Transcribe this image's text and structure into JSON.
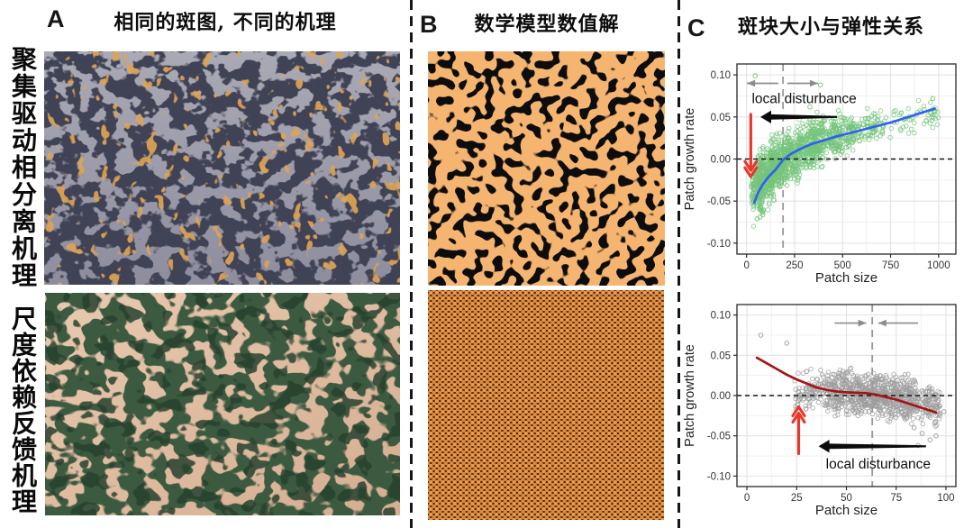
{
  "figure": {
    "side_labels": {
      "top": "聚集驱动相分离机理",
      "bottom": "尺度依赖反馈机理"
    },
    "panels": {
      "A": {
        "label": "A",
        "title": "相同的斑图, 不同的机理"
      },
      "B": {
        "label": "B",
        "title": "数学模型数值解"
      },
      "C": {
        "label": "C",
        "title": "斑块大小与弹性关系"
      }
    },
    "colors": {
      "mussel_mud": "#9b9aa8",
      "mussel_dark": "#3f4254",
      "mussel_gold": "#e0a452",
      "veg_soil": "#e2c0a4",
      "veg_green": "#3b5a41",
      "model_orange_bg": "#f5b470",
      "model_black_spot": "#0d0d0d",
      "model_dot_orange": "#f09a4a",
      "divider_black": "#161616"
    }
  },
  "chart_data": [
    {
      "type": "scatter",
      "position": "top",
      "xlabel": "Patch size",
      "ylabel": "Patch growth rate",
      "xlim": [
        -50,
        1090
      ],
      "ylim": [
        -0.113,
        0.113
      ],
      "xticks": [
        0,
        250,
        500,
        750,
        1000
      ],
      "xtick_labels": [
        "0",
        "250",
        "500",
        "750",
        "1000"
      ],
      "yticks": [
        -0.1,
        -0.05,
        0.0,
        0.05,
        0.1
      ],
      "ytick_labels": [
        "-0.10",
        "-0.05",
        "0.00",
        "0.05",
        "0.10"
      ],
      "grid": true,
      "zero_dashed_line_y": 0.0,
      "dashed_vline_x": 190,
      "point_color": "#74c47a",
      "trend_color": "#2e62f0",
      "trend": [
        [
          40,
          -0.052
        ],
        [
          60,
          -0.04
        ],
        [
          85,
          -0.03
        ],
        [
          115,
          -0.021
        ],
        [
          150,
          -0.013
        ],
        [
          190,
          -0.001
        ],
        [
          230,
          0.006
        ],
        [
          280,
          0.012
        ],
        [
          340,
          0.018
        ],
        [
          400,
          0.022
        ],
        [
          470,
          0.027
        ],
        [
          560,
          0.032
        ],
        [
          660,
          0.038
        ],
        [
          760,
          0.044
        ],
        [
          870,
          0.052
        ],
        [
          980,
          0.06
        ]
      ],
      "cloud": {
        "seed": 7,
        "n": 1400,
        "strata": [
          {
            "x": [
              25,
              90
            ],
            "center": [
              -0.04,
              -0.03
            ],
            "spread": 0.016,
            "w": 0.1
          },
          {
            "x": [
              60,
              150
            ],
            "center": [
              -0.03,
              -0.012
            ],
            "spread": 0.016,
            "w": 0.16
          },
          {
            "x": [
              120,
              250
            ],
            "center": [
              -0.012,
              0.008
            ],
            "spread": 0.015,
            "w": 0.26
          },
          {
            "x": [
              250,
              400
            ],
            "center": [
              0.008,
              0.024
            ],
            "spread": 0.014,
            "w": 0.24
          },
          {
            "x": [
              400,
              560
            ],
            "center": [
              0.024,
              0.034
            ],
            "spread": 0.011,
            "w": 0.14
          },
          {
            "x": [
              560,
              720
            ],
            "center": [
              0.034,
              0.04
            ],
            "spread": 0.009,
            "w": 0.06
          },
          {
            "x": [
              720,
              1000
            ],
            "center": [
              0.04,
              0.055
            ],
            "spread": 0.009,
            "w": 0.04
          }
        ]
      },
      "outliers": [
        [
          45,
          0.099
        ],
        [
          385,
          0.088
        ],
        [
          970,
          0.072
        ],
        [
          330,
          0.062
        ],
        [
          55,
          -0.071
        ],
        [
          70,
          -0.069
        ],
        [
          85,
          -0.066
        ],
        [
          620,
          0.048
        ],
        [
          680,
          0.041
        ]
      ],
      "annotations": {
        "text": {
          "label": "local disturbance",
          "x": 300,
          "y": 0.072
        },
        "gray_arrows": [
          {
            "from": [
              165,
              0.09
            ],
            "to": [
              2,
              0.09
            ]
          },
          {
            "from": [
              212,
              0.09
            ],
            "to": [
              372,
              0.09
            ]
          }
        ],
        "black_arrow": {
          "from": [
            471,
            0.05
          ],
          "to": [
            72,
            0.05
          ]
        },
        "red_arrow": {
          "x": 22,
          "y_from": 0.053,
          "y_to": -0.021,
          "dir": "down"
        }
      }
    },
    {
      "type": "scatter",
      "position": "bottom",
      "xlabel": "Patch size",
      "ylabel": "Patch growth rate",
      "xlim": [
        -5,
        105
      ],
      "ylim": [
        -0.113,
        0.113
      ],
      "xticks": [
        0,
        25,
        50,
        75,
        100
      ],
      "xtick_labels": [
        "0",
        "25",
        "50",
        "75",
        "100"
      ],
      "yticks": [
        -0.1,
        -0.05,
        0.0,
        0.05,
        0.1
      ],
      "ytick_labels": [
        "-0.10",
        "-0.05",
        "0.00",
        "0.05",
        "0.10"
      ],
      "grid": true,
      "zero_dashed_line_y": 0.0,
      "dashed_vline_x": 63,
      "point_color": "#9e9e9e",
      "trend_color": "#a31515",
      "trend": [
        [
          5,
          0.047
        ],
        [
          10,
          0.04
        ],
        [
          15,
          0.033
        ],
        [
          20,
          0.026
        ],
        [
          25,
          0.02
        ],
        [
          30,
          0.015
        ],
        [
          35,
          0.01
        ],
        [
          40,
          0.007
        ],
        [
          45,
          0.005
        ],
        [
          50,
          0.004
        ],
        [
          55,
          0.0035
        ],
        [
          60,
          0.003
        ],
        [
          65,
          0.001
        ],
        [
          70,
          -0.002
        ],
        [
          75,
          -0.005
        ],
        [
          80,
          -0.009
        ],
        [
          85,
          -0.013
        ],
        [
          90,
          -0.017
        ],
        [
          95,
          -0.021
        ]
      ],
      "cloud": {
        "seed": 13,
        "n": 1000,
        "strata": [
          {
            "x": [
              24,
              40
            ],
            "center": [
              0.004,
              0.006
            ],
            "spread": 0.01,
            "w": 0.1
          },
          {
            "x": [
              40,
              55
            ],
            "center": [
              0.006,
              0.004
            ],
            "spread": 0.012,
            "w": 0.22
          },
          {
            "x": [
              55,
              70
            ],
            "center": [
              0.003,
              0.0
            ],
            "spread": 0.012,
            "w": 0.3
          },
          {
            "x": [
              70,
              85
            ],
            "center": [
              -0.001,
              -0.006
            ],
            "spread": 0.013,
            "w": 0.26
          },
          {
            "x": [
              85,
              97
            ],
            "center": [
              -0.006,
              -0.012
            ],
            "spread": 0.013,
            "w": 0.12
          }
        ]
      },
      "outliers": [
        [
          7,
          0.075
        ],
        [
          20,
          0.065
        ],
        [
          30,
          0.03
        ],
        [
          88,
          -0.047
        ],
        [
          92,
          -0.055
        ],
        [
          95,
          -0.05
        ],
        [
          84,
          -0.04
        ],
        [
          86,
          -0.062
        ],
        [
          96,
          -0.001
        ],
        [
          99,
          -0.02
        ]
      ],
      "annotations": {
        "text": {
          "label": "local disturbance",
          "x": 66,
          "y": -0.085
        },
        "gray_arrows": [
          {
            "from": [
              44,
              0.09
            ],
            "to": [
              60,
              0.09
            ]
          },
          {
            "from": [
              86,
              0.09
            ],
            "to": [
              66,
              0.09
            ]
          }
        ],
        "black_arrow": {
          "from": [
            90,
            -0.063
          ],
          "to": [
            36,
            -0.063
          ]
        },
        "red_arrow": {
          "x": 26,
          "y_from": -0.072,
          "y_to": -0.014,
          "dir": "up"
        }
      }
    }
  ]
}
